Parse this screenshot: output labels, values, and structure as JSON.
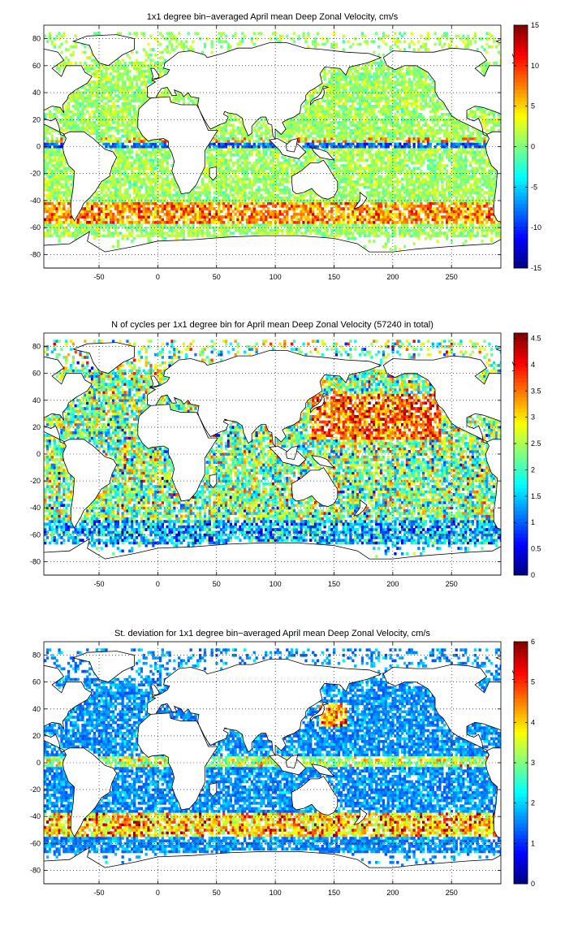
{
  "chart_data": [
    {
      "type": "heatmap",
      "title": "1x1 degree bin−averaged April mean Deep Zonal Velocity, cm/s",
      "xlim": [
        -97,
        292
      ],
      "ylim": [
        -90,
        90
      ],
      "xticks": [
        -50,
        0,
        50,
        100,
        150,
        200,
        250
      ],
      "yticks": [
        -80,
        -60,
        -40,
        -20,
        0,
        20,
        40,
        60,
        80
      ],
      "grid": true,
      "colorbar": {
        "colormap": "jet",
        "clim": [
          -15,
          15
        ],
        "ticks": [
          -15,
          -10,
          -5,
          0,
          5,
          10,
          15
        ],
        "tick_labels": [
          "-15",
          "-10",
          "-5",
          "0",
          "5",
          "10",
          "15"
        ]
      },
      "coastlines": true,
      "field": "mean zonal velocity",
      "typical_values": {
        "ocean_interior": [
          -2,
          4
        ],
        "southern_ocean_band": [
          8,
          15
        ],
        "equatorial_band": [
          -12,
          -6
        ]
      }
    },
    {
      "type": "heatmap",
      "title": "N of cycles per 1x1 degree bin for April mean Deep Zonal Velocity (57240 in total)",
      "xlim": [
        -97,
        292
      ],
      "ylim": [
        -90,
        90
      ],
      "xticks": [
        -50,
        0,
        50,
        100,
        150,
        200,
        250
      ],
      "yticks": [
        -80,
        -60,
        -40,
        -20,
        0,
        20,
        40,
        60,
        80
      ],
      "grid": true,
      "colorbar": {
        "colormap": "jet",
        "clim": [
          0,
          4.6
        ],
        "ticks": [
          0,
          0.5,
          1,
          1.5,
          2,
          2.5,
          3,
          3.5,
          4,
          4.5
        ],
        "tick_labels": [
          "0",
          "0.5",
          "1",
          "1.5",
          "2",
          "2.5",
          "3",
          "3.5",
          "4",
          "4.5"
        ]
      },
      "coastlines": true,
      "field": "cycle count (log scale)",
      "typical_values": {
        "ocean_interior": [
          1,
          4.6
        ]
      }
    },
    {
      "type": "heatmap",
      "title": "St. deviation for 1x1 degree bin−averaged April mean Deep Zonal Velocity, cm/s",
      "xlim": [
        -97,
        292
      ],
      "ylim": [
        -90,
        90
      ],
      "xticks": [
        -50,
        0,
        50,
        100,
        150,
        200,
        250
      ],
      "yticks": [
        -80,
        -60,
        -40,
        -20,
        0,
        20,
        40,
        60,
        80
      ],
      "grid": true,
      "colorbar": {
        "colormap": "jet",
        "clim": [
          0,
          6
        ],
        "ticks": [
          0,
          1,
          2,
          3,
          4,
          5,
          6
        ],
        "tick_labels": [
          "0",
          "1",
          "2",
          "3",
          "4",
          "5",
          "6"
        ]
      },
      "coastlines": true,
      "field": "standard deviation",
      "typical_values": {
        "ocean_interior": [
          0,
          2
        ],
        "southern_ocean_band": [
          4,
          6
        ]
      }
    }
  ]
}
